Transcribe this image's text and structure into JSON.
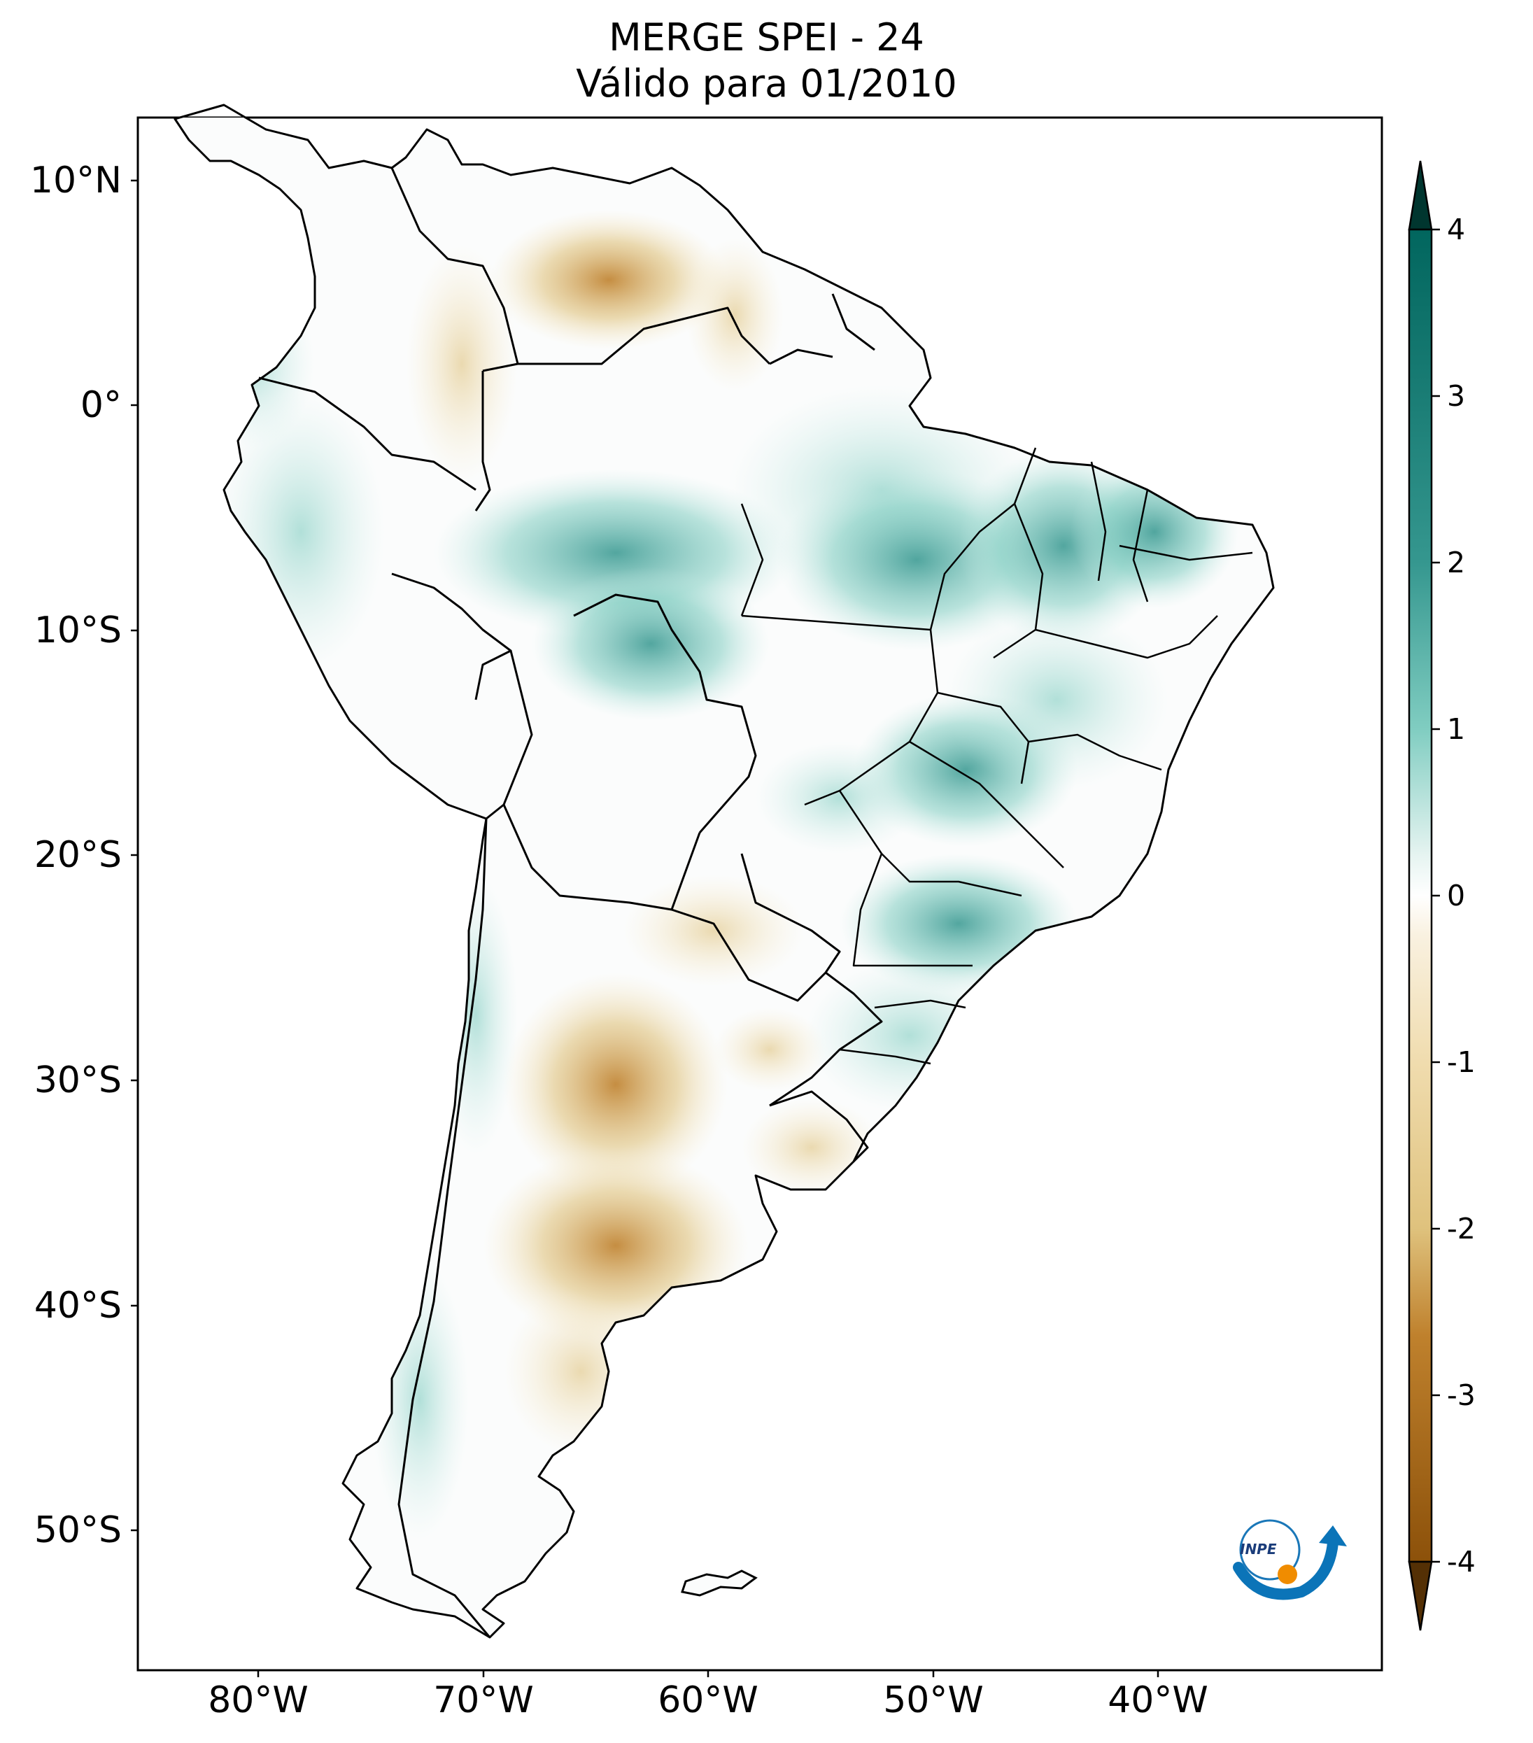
{
  "title": {
    "line1": "MERGE   SPEI - 24",
    "line2": "Válido para 01/2010"
  },
  "axes": {
    "latitude_labels": [
      "10°N",
      "0°",
      "10°S",
      "20°S",
      "30°S",
      "40°S",
      "50°S"
    ],
    "longitude_labels": [
      "80°W",
      "70°W",
      "60°W",
      "50°W",
      "40°W"
    ]
  },
  "colorbar": {
    "ticks": [
      "4",
      "3",
      "2",
      "1",
      "0",
      "-1",
      "-2",
      "-3",
      "-4"
    ],
    "range": [
      -4,
      4
    ],
    "extend": "both",
    "colors": {
      "wet_max": "#00362f",
      "wet_strong": "#01665e",
      "wet": "#35978f",
      "wet_light": "#80cdc1",
      "wet_faint": "#c7eae5",
      "neutral": "#ffffff",
      "dry_faint": "#f6e8c3",
      "dry_light": "#dfc27d",
      "dry": "#bf812d",
      "dry_strong": "#8c510a",
      "dry_max": "#543005"
    }
  },
  "logo": {
    "text": "INPE"
  }
}
